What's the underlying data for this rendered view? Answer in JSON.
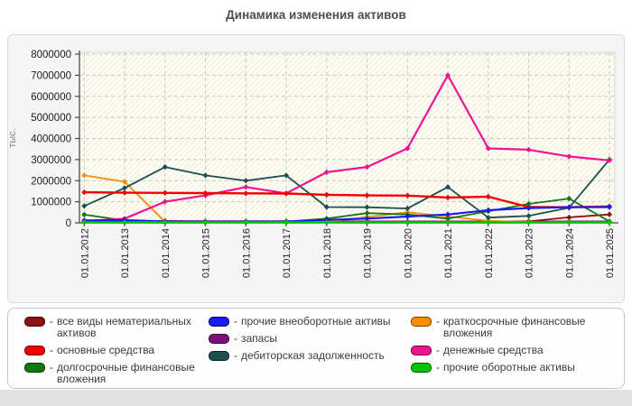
{
  "title": "Динамика изменения активов",
  "legend": {
    "separator": "-"
  },
  "chart_data": {
    "type": "line",
    "title": "Динамика изменения активов",
    "xlabel": "",
    "ylabel": "тыс.",
    "ylim": [
      0,
      8000000
    ],
    "grid": true,
    "legend_position": "bottom",
    "y_tick_labels": [
      "0",
      "1000000",
      "2000000",
      "3000000",
      "4000000",
      "5000000",
      "6000000",
      "7000000",
      "8000000"
    ],
    "categories": [
      "01.01.2012",
      "01.01.2013",
      "01.01.2014",
      "01.01.2015",
      "01.01.2016",
      "01.01.2017",
      "01.01.2018",
      "01.01.2019",
      "01.01.2020",
      "01.01.2021",
      "01.01.2022",
      "01.01.2023",
      "01.01.2024",
      "01.01.2025"
    ],
    "series": [
      {
        "name": "все виды нематериальных активов",
        "color": "#8c1010",
        "values": [
          30000,
          30000,
          20000,
          20000,
          20000,
          20000,
          20000,
          20000,
          20000,
          20000,
          30000,
          70000,
          260000,
          400000
        ]
      },
      {
        "name": "основные средства",
        "color": "#f20000",
        "values": [
          1450000,
          1430000,
          1420000,
          1410000,
          1400000,
          1390000,
          1330000,
          1300000,
          1290000,
          1200000,
          1240000,
          750000,
          740000,
          780000
        ]
      },
      {
        "name": "долгосрочные финансовые вложения",
        "color": "#117711",
        "values": [
          390000,
          110000,
          60000,
          50000,
          50000,
          60000,
          200000,
          460000,
          400000,
          200000,
          550000,
          900000,
          1150000,
          70000
        ]
      },
      {
        "name": "прочие внеоборотные активы",
        "color": "#1a1af2",
        "values": [
          110000,
          130000,
          60000,
          50000,
          50000,
          60000,
          140000,
          200000,
          300000,
          400000,
          600000,
          700000,
          740000,
          750000
        ]
      },
      {
        "name": "запасы",
        "color": "#7d0f7d",
        "values": [
          70000,
          90000,
          80000,
          70000,
          70000,
          70000,
          70000,
          60000,
          60000,
          60000,
          60000,
          60000,
          60000,
          60000
        ]
      },
      {
        "name": "дебиторская задолженность",
        "color": "#1d4f4f",
        "values": [
          800000,
          1650000,
          2650000,
          2250000,
          2000000,
          2250000,
          750000,
          740000,
          680000,
          1700000,
          250000,
          330000,
          720000,
          3000000
        ]
      },
      {
        "name": "краткосрочные финансовые вложения",
        "color": "#ff8c00",
        "values": [
          2250000,
          1950000,
          50000,
          40000,
          30000,
          30000,
          60000,
          280000,
          500000,
          300000,
          100000,
          30000,
          30000,
          30000
        ]
      },
      {
        "name": "денежные средства",
        "color": "#ef1390",
        "values": [
          80000,
          200000,
          1000000,
          1300000,
          1700000,
          1400000,
          2400000,
          2650000,
          3530000,
          7000000,
          3530000,
          3470000,
          3150000,
          2960000
        ]
      },
      {
        "name": "прочие оборотные активы",
        "color": "#00c400",
        "values": [
          20000,
          20000,
          20000,
          20000,
          20000,
          20000,
          20000,
          20000,
          20000,
          20000,
          20000,
          20000,
          20000,
          20000
        ]
      }
    ],
    "legend_columns": [
      [
        0,
        1,
        2
      ],
      [
        3,
        4,
        5
      ],
      [
        6,
        7,
        8
      ]
    ]
  }
}
